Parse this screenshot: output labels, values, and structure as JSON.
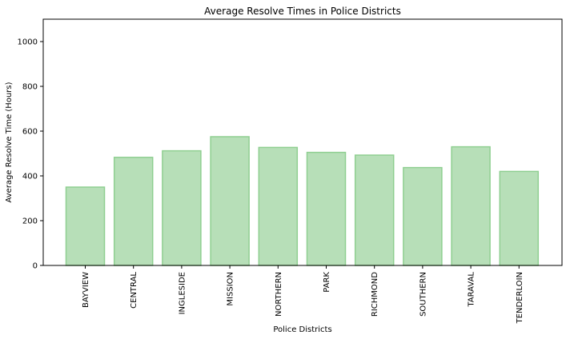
{
  "chart_data": {
    "type": "bar",
    "title": "Average Resolve Times in Police Districts",
    "xlabel": "Police Districts",
    "ylabel": "Average Resolve Time (Hours)",
    "categories": [
      "BAYVIEW",
      "CENTRAL",
      "INGLESIDE",
      "MISSION",
      "NORTHERN",
      "PARK",
      "RICHMOND",
      "SOUTHERN",
      "TARAVAL",
      "TENDERLOIN"
    ],
    "values": [
      350,
      483,
      512,
      575,
      527,
      505,
      493,
      437,
      530,
      420
    ],
    "ylim": [
      0,
      1100
    ],
    "yticks": [
      0,
      200,
      400,
      600,
      800,
      1000
    ],
    "grid": false,
    "legend": "none",
    "colors": {
      "bar_fill": "#b7dfb8",
      "bar_edge": "#8fcf91"
    }
  }
}
